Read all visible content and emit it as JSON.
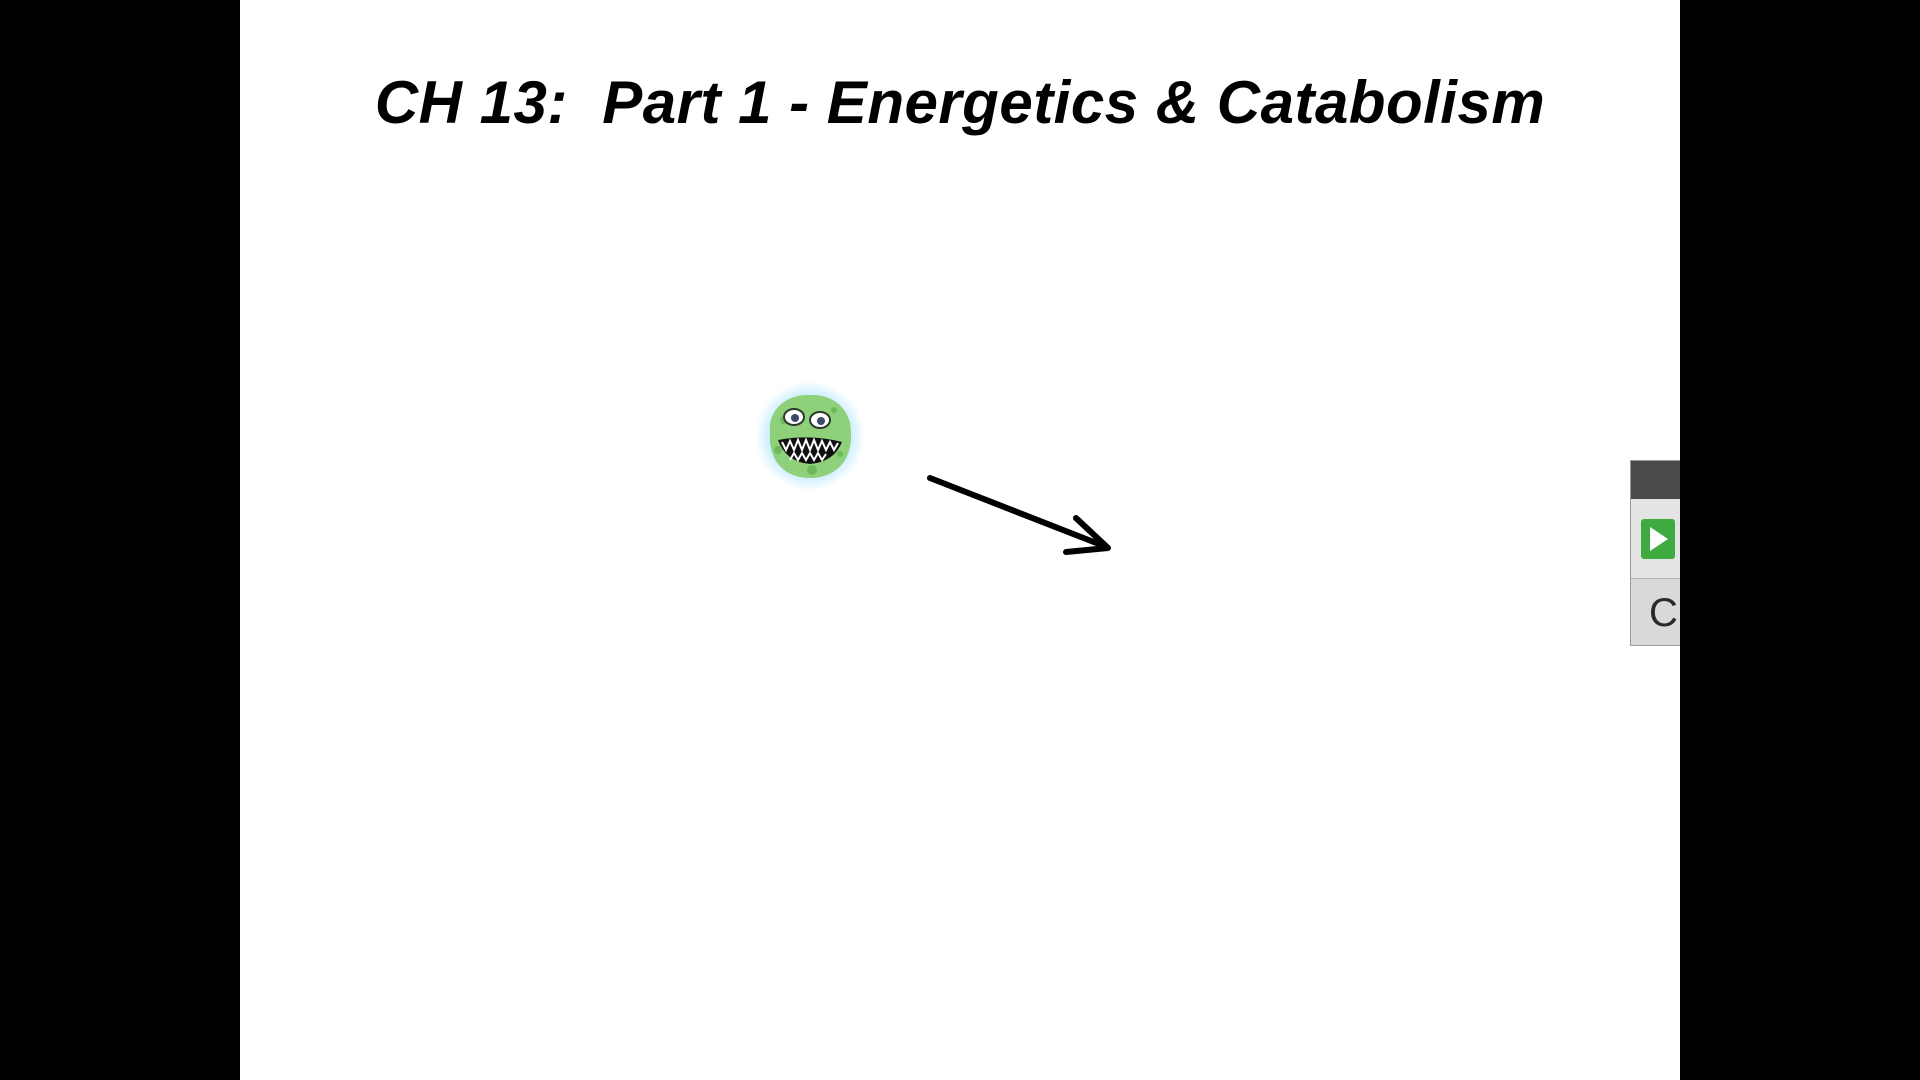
{
  "slide": {
    "title": "CH 13:  Part 1 - Energetics & Catabolism",
    "background": "#ffffff"
  },
  "illustration": {
    "microbe_icon": "green-microbe-icon",
    "microbe_color": "#8fd07a",
    "arrow_icon": "arrow-right-down-icon",
    "arrow_color": "#000000"
  },
  "media_panel": {
    "play_icon": "play-icon",
    "play_color": "#3faa3f",
    "label": "C"
  },
  "letterbox_color": "#000000"
}
